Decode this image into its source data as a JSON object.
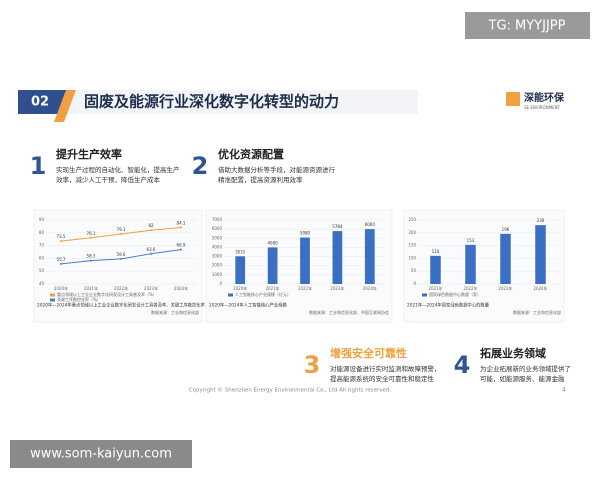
{
  "watermark_top": "TG: MYYJJPP",
  "watermark_bottom": "www.som-kaiyun.com",
  "header": {
    "number": "02",
    "title": "固废及能源行业深化数字化转型的动力",
    "logo_cn": "深能环保",
    "logo_en": "SE ENVIRONMENT"
  },
  "points": [
    {
      "number": "1",
      "title": "提升生产效率",
      "text": [
        "实现生产过程的自动化、智能化，提高生产",
        "效率，减少人工干预，降低生产成本"
      ]
    },
    {
      "number": "2",
      "title": "优化资源配置",
      "text": [
        "借助大数据分析等手段，对能源资源进行",
        "精准配置，提高资源利用效率"
      ]
    },
    {
      "number": "3",
      "title": "增强安全可靠性",
      "text": [
        "对能源设备进行实时监测和故障预警，",
        "提高能源系统的安全可靠性和稳定性"
      ]
    },
    {
      "number": "4",
      "title": "拓展业务领域",
      "text": [
        "为企业拓展新的业务领域提供了",
        "可能，如能源服务、能源金融"
      ]
    }
  ],
  "charts": [
    {
      "type": "line",
      "categories": [
        "2020年",
        "2021年",
        "2022年",
        "2023年",
        "2024年"
      ],
      "ylim": [
        40,
        90
      ],
      "yticks": [
        40,
        50,
        60,
        70,
        80,
        90
      ],
      "series": [
        {
          "name": "重点领域以上工业企业数字化研发设计工具普及率（%）",
          "color": "#f0a040",
          "values": [
            73.5,
            76.1,
            79.1,
            82.0,
            84.1
          ]
        },
        {
          "name": "关键工序数控化率（%）",
          "color": "#4a7cc8",
          "values": [
            55.7,
            58.3,
            59.6,
            63.6,
            66.9
          ]
        }
      ],
      "caption": "2020年—2024年重点领域以上工业企业数字化研发设计工具普及率、关键工序数控化率",
      "source": "数据来源：工业和信息化部"
    },
    {
      "type": "bar",
      "categories": [
        "2020年",
        "2021年",
        "2022年",
        "2023年",
        "2024年"
      ],
      "ylim": [
        0,
        7000
      ],
      "yticks": [
        0,
        1000,
        2000,
        3000,
        4000,
        5000,
        6000,
        7000
      ],
      "series": [
        {
          "name": "人工智能核心产业规模（亿元）",
          "color": "#3a6fc4",
          "values": [
            3031,
            4000,
            5080,
            5784,
            6000
          ]
        }
      ],
      "caption": "2020年—2024年人工智能核心产业规模",
      "source": "数据来源：工业和信息化部、中国互联网协会"
    },
    {
      "type": "bar",
      "categories": [
        "2021年",
        "2022年",
        "2023年",
        "2024年"
      ],
      "ylim": [
        0,
        250
      ],
      "yticks": [
        0,
        50,
        100,
        150,
        200,
        250
      ],
      "series": [
        {
          "name": "国家绿色数据中心数量（家）",
          "color": "#3a6fc4",
          "values": [
            110,
            153,
            196,
            230
          ]
        }
      ],
      "caption": "2021年—2024年国家绿色数据中心的数量",
      "source": "数据来源：工业和信息化部"
    }
  ],
  "footer": {
    "copyright": "Copyright © Shenzhen Energy Environmental Co., Ltd All rights reserved.",
    "page": "4"
  }
}
